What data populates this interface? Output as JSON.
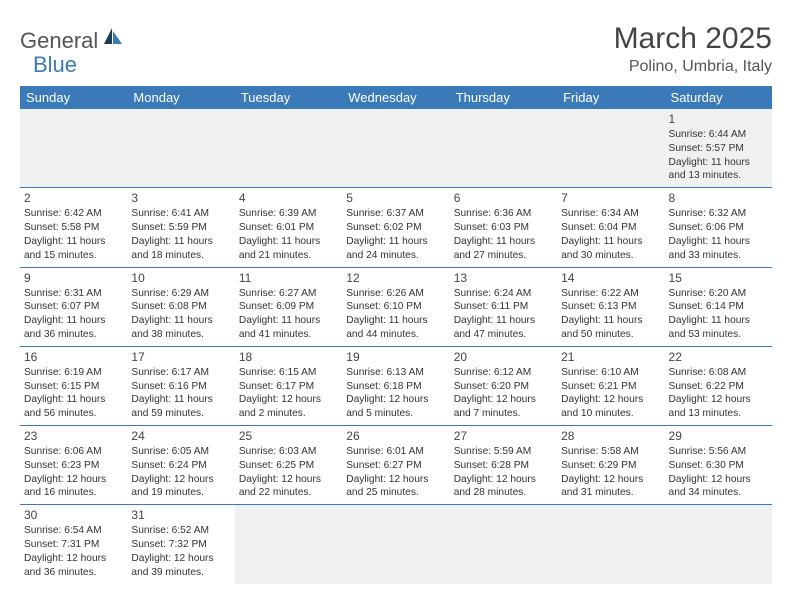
{
  "logo": {
    "general": "General",
    "blue": "Blue"
  },
  "title": "March 2025",
  "location": "Polino, Umbria, Italy",
  "headers": [
    "Sunday",
    "Monday",
    "Tuesday",
    "Wednesday",
    "Thursday",
    "Friday",
    "Saturday"
  ],
  "colors": {
    "header_bg": "#3b7ab8",
    "header_fg": "#ffffff",
    "border": "#3b7ab8",
    "empty_bg": "#f0f0f0",
    "text": "#333333",
    "title": "#444444"
  },
  "weeks": [
    [
      null,
      null,
      null,
      null,
      null,
      null,
      {
        "n": "1",
        "sr": "Sunrise: 6:44 AM",
        "ss": "Sunset: 5:57 PM",
        "dl": "Daylight: 11 hours and 13 minutes."
      }
    ],
    [
      {
        "n": "2",
        "sr": "Sunrise: 6:42 AM",
        "ss": "Sunset: 5:58 PM",
        "dl": "Daylight: 11 hours and 15 minutes."
      },
      {
        "n": "3",
        "sr": "Sunrise: 6:41 AM",
        "ss": "Sunset: 5:59 PM",
        "dl": "Daylight: 11 hours and 18 minutes."
      },
      {
        "n": "4",
        "sr": "Sunrise: 6:39 AM",
        "ss": "Sunset: 6:01 PM",
        "dl": "Daylight: 11 hours and 21 minutes."
      },
      {
        "n": "5",
        "sr": "Sunrise: 6:37 AM",
        "ss": "Sunset: 6:02 PM",
        "dl": "Daylight: 11 hours and 24 minutes."
      },
      {
        "n": "6",
        "sr": "Sunrise: 6:36 AM",
        "ss": "Sunset: 6:03 PM",
        "dl": "Daylight: 11 hours and 27 minutes."
      },
      {
        "n": "7",
        "sr": "Sunrise: 6:34 AM",
        "ss": "Sunset: 6:04 PM",
        "dl": "Daylight: 11 hours and 30 minutes."
      },
      {
        "n": "8",
        "sr": "Sunrise: 6:32 AM",
        "ss": "Sunset: 6:06 PM",
        "dl": "Daylight: 11 hours and 33 minutes."
      }
    ],
    [
      {
        "n": "9",
        "sr": "Sunrise: 6:31 AM",
        "ss": "Sunset: 6:07 PM",
        "dl": "Daylight: 11 hours and 36 minutes."
      },
      {
        "n": "10",
        "sr": "Sunrise: 6:29 AM",
        "ss": "Sunset: 6:08 PM",
        "dl": "Daylight: 11 hours and 38 minutes."
      },
      {
        "n": "11",
        "sr": "Sunrise: 6:27 AM",
        "ss": "Sunset: 6:09 PM",
        "dl": "Daylight: 11 hours and 41 minutes."
      },
      {
        "n": "12",
        "sr": "Sunrise: 6:26 AM",
        "ss": "Sunset: 6:10 PM",
        "dl": "Daylight: 11 hours and 44 minutes."
      },
      {
        "n": "13",
        "sr": "Sunrise: 6:24 AM",
        "ss": "Sunset: 6:11 PM",
        "dl": "Daylight: 11 hours and 47 minutes."
      },
      {
        "n": "14",
        "sr": "Sunrise: 6:22 AM",
        "ss": "Sunset: 6:13 PM",
        "dl": "Daylight: 11 hours and 50 minutes."
      },
      {
        "n": "15",
        "sr": "Sunrise: 6:20 AM",
        "ss": "Sunset: 6:14 PM",
        "dl": "Daylight: 11 hours and 53 minutes."
      }
    ],
    [
      {
        "n": "16",
        "sr": "Sunrise: 6:19 AM",
        "ss": "Sunset: 6:15 PM",
        "dl": "Daylight: 11 hours and 56 minutes."
      },
      {
        "n": "17",
        "sr": "Sunrise: 6:17 AM",
        "ss": "Sunset: 6:16 PM",
        "dl": "Daylight: 11 hours and 59 minutes."
      },
      {
        "n": "18",
        "sr": "Sunrise: 6:15 AM",
        "ss": "Sunset: 6:17 PM",
        "dl": "Daylight: 12 hours and 2 minutes."
      },
      {
        "n": "19",
        "sr": "Sunrise: 6:13 AM",
        "ss": "Sunset: 6:18 PM",
        "dl": "Daylight: 12 hours and 5 minutes."
      },
      {
        "n": "20",
        "sr": "Sunrise: 6:12 AM",
        "ss": "Sunset: 6:20 PM",
        "dl": "Daylight: 12 hours and 7 minutes."
      },
      {
        "n": "21",
        "sr": "Sunrise: 6:10 AM",
        "ss": "Sunset: 6:21 PM",
        "dl": "Daylight: 12 hours and 10 minutes."
      },
      {
        "n": "22",
        "sr": "Sunrise: 6:08 AM",
        "ss": "Sunset: 6:22 PM",
        "dl": "Daylight: 12 hours and 13 minutes."
      }
    ],
    [
      {
        "n": "23",
        "sr": "Sunrise: 6:06 AM",
        "ss": "Sunset: 6:23 PM",
        "dl": "Daylight: 12 hours and 16 minutes."
      },
      {
        "n": "24",
        "sr": "Sunrise: 6:05 AM",
        "ss": "Sunset: 6:24 PM",
        "dl": "Daylight: 12 hours and 19 minutes."
      },
      {
        "n": "25",
        "sr": "Sunrise: 6:03 AM",
        "ss": "Sunset: 6:25 PM",
        "dl": "Daylight: 12 hours and 22 minutes."
      },
      {
        "n": "26",
        "sr": "Sunrise: 6:01 AM",
        "ss": "Sunset: 6:27 PM",
        "dl": "Daylight: 12 hours and 25 minutes."
      },
      {
        "n": "27",
        "sr": "Sunrise: 5:59 AM",
        "ss": "Sunset: 6:28 PM",
        "dl": "Daylight: 12 hours and 28 minutes."
      },
      {
        "n": "28",
        "sr": "Sunrise: 5:58 AM",
        "ss": "Sunset: 6:29 PM",
        "dl": "Daylight: 12 hours and 31 minutes."
      },
      {
        "n": "29",
        "sr": "Sunrise: 5:56 AM",
        "ss": "Sunset: 6:30 PM",
        "dl": "Daylight: 12 hours and 34 minutes."
      }
    ],
    [
      {
        "n": "30",
        "sr": "Sunrise: 6:54 AM",
        "ss": "Sunset: 7:31 PM",
        "dl": "Daylight: 12 hours and 36 minutes."
      },
      {
        "n": "31",
        "sr": "Sunrise: 6:52 AM",
        "ss": "Sunset: 7:32 PM",
        "dl": "Daylight: 12 hours and 39 minutes."
      },
      null,
      null,
      null,
      null,
      null
    ]
  ]
}
